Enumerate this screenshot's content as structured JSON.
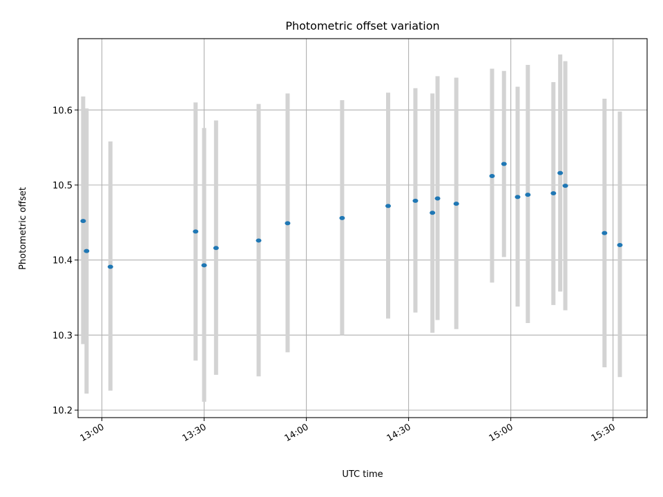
{
  "chart_data": {
    "type": "scatter",
    "title": "Photometric offset variation",
    "xlabel": "UTC time",
    "ylabel": "Photometric offset",
    "xlim": [
      "12:53",
      "15:40"
    ],
    "ylim": [
      10.19,
      10.695
    ],
    "x_ticks": [
      "13:00",
      "13:30",
      "14:00",
      "14:30",
      "15:00",
      "15:30"
    ],
    "y_ticks": [
      "10.2",
      "10.3",
      "10.4",
      "10.5",
      "10.6"
    ],
    "grid": true,
    "colors": {
      "point": "#1f77b4",
      "error_bar": "#d3d3d3",
      "grid": "#b0b0b0"
    },
    "series": [
      {
        "points": [
          {
            "time": "12:54.5",
            "value": 10.452,
            "low": 10.288,
            "high": 10.618
          },
          {
            "time": "12:55.5",
            "value": 10.412,
            "low": 10.222,
            "high": 10.602
          },
          {
            "time": "13:02.5",
            "value": 10.391,
            "low": 10.226,
            "high": 10.558
          },
          {
            "time": "13:27.5",
            "value": 10.438,
            "low": 10.266,
            "high": 10.61
          },
          {
            "time": "13:30.0",
            "value": 10.393,
            "low": 10.211,
            "high": 10.576
          },
          {
            "time": "13:33.5",
            "value": 10.416,
            "low": 10.247,
            "high": 10.586
          },
          {
            "time": "13:46.0",
            "value": 10.426,
            "low": 10.245,
            "high": 10.608
          },
          {
            "time": "13:54.5",
            "value": 10.449,
            "low": 10.277,
            "high": 10.622
          },
          {
            "time": "14:10.5",
            "value": 10.456,
            "low": 10.3,
            "high": 10.613
          },
          {
            "time": "14:24.0",
            "value": 10.472,
            "low": 10.322,
            "high": 10.623
          },
          {
            "time": "14:32.0",
            "value": 10.479,
            "low": 10.33,
            "high": 10.629
          },
          {
            "time": "14:37.0",
            "value": 10.463,
            "low": 10.303,
            "high": 10.622
          },
          {
            "time": "14:38.5",
            "value": 10.482,
            "low": 10.32,
            "high": 10.645
          },
          {
            "time": "14:44.0",
            "value": 10.475,
            "low": 10.308,
            "high": 10.643
          },
          {
            "time": "14:54.5",
            "value": 10.512,
            "low": 10.37,
            "high": 10.655
          },
          {
            "time": "14:58.0",
            "value": 10.528,
            "low": 10.404,
            "high": 10.652
          },
          {
            "time": "15:02.0",
            "value": 10.484,
            "low": 10.338,
            "high": 10.631
          },
          {
            "time": "15:05.0",
            "value": 10.487,
            "low": 10.316,
            "high": 10.66
          },
          {
            "time": "15:12.5",
            "value": 10.489,
            "low": 10.34,
            "high": 10.637
          },
          {
            "time": "15:14.5",
            "value": 10.516,
            "low": 10.358,
            "high": 10.674
          },
          {
            "time": "15:16.0",
            "value": 10.499,
            "low": 10.333,
            "high": 10.665
          },
          {
            "time": "15:27.5",
            "value": 10.436,
            "low": 10.257,
            "high": 10.615
          },
          {
            "time": "15:32.0",
            "value": 10.42,
            "low": 10.244,
            "high": 10.598
          }
        ]
      }
    ]
  }
}
